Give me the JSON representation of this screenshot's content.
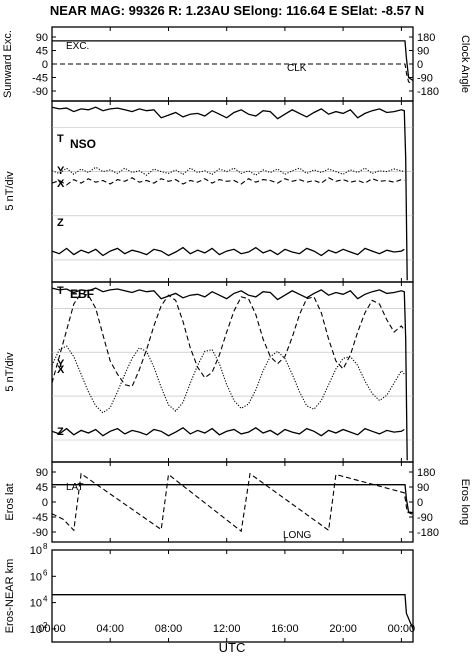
{
  "title": "NEAR MAG: 99326  R: 1.23AU  SElong:  116.64 E  SElat:   -8.57 N",
  "xlabel": "UTC",
  "x_ticks": [
    "00:00",
    "04:00",
    "08:00",
    "12:00",
    "16:00",
    "20:00",
    "00:00"
  ],
  "colors": {
    "line": "#000000",
    "frame": "#000000",
    "guide": "#b8b8b8"
  },
  "chart_data": [
    {
      "type": "line",
      "panel": "sunward",
      "ylabel": "Sunward Exc.",
      "y2label": "Clock Angle",
      "yticks": [
        "90",
        "45",
        "0",
        "-45",
        "-90"
      ],
      "y2ticks": [
        "180",
        "90",
        "0",
        "-90",
        "-180"
      ],
      "ylim": [
        -90,
        90
      ],
      "xlim": [
        0,
        24.8
      ],
      "series": [
        {
          "name": "EXC.",
          "style": "solid",
          "x": [
            0,
            24.25,
            24.35,
            24.5,
            24.8
          ],
          "values": [
            77,
            77,
            20,
            -45,
            -55
          ]
        },
        {
          "name": "CLK",
          "style": "dashed",
          "axis": "right",
          "x": [
            0,
            24.25,
            24.35,
            24.5,
            24.8
          ],
          "values": [
            0,
            0,
            -60,
            -120,
            -130
          ]
        }
      ]
    },
    {
      "type": "line",
      "panel": "nso",
      "label": "NSO",
      "ylabel": "5 nT/div",
      "xlim": [
        0,
        24.8
      ],
      "series": [
        {
          "name": "T",
          "style": "solid",
          "x": [
            0,
            0.5,
            1,
            1.5,
            2,
            2.5,
            3,
            3.5,
            4,
            4.5,
            5,
            5.5,
            6,
            6.5,
            7,
            7.5,
            8,
            8.5,
            9,
            9.5,
            10,
            10.5,
            11,
            11.5,
            12,
            12.5,
            13,
            13.5,
            14,
            14.5,
            15,
            15.5,
            16,
            16.5,
            17,
            17.5,
            18,
            18.5,
            19,
            19.5,
            20,
            20.5,
            21,
            21.5,
            22,
            22.5,
            23,
            23.5,
            24,
            24.2,
            24.3,
            24.4
          ],
          "values": [
            9.8,
            9.6,
            9.7,
            9.3,
            9.6,
            9.5,
            9.8,
            9.4,
            9.6,
            9.7,
            9.5,
            9.3,
            9.6,
            9.4,
            9.5,
            8.6,
            8.9,
            9.2,
            8.7,
            9.0,
            9.1,
            8.8,
            9.4,
            9.0,
            8.6,
            9.2,
            9.5,
            9.0,
            8.8,
            9.4,
            9.3,
            8.5,
            9.0,
            9.5,
            9.1,
            8.7,
            9.2,
            9.6,
            9.0,
            9.3,
            9.1,
            9.5,
            8.6,
            9.1,
            9.4,
            9.6,
            9.2,
            9.3,
            9.5,
            9.4,
            4.0,
            -9.8
          ]
        },
        {
          "name": "Y",
          "style": "dotted",
          "x": [
            0,
            0.5,
            1,
            1.5,
            2,
            2.5,
            3,
            3.5,
            4,
            4.5,
            5,
            5.5,
            6,
            6.5,
            7,
            7.5,
            8,
            8.5,
            9,
            9.5,
            10,
            10.5,
            11,
            11.5,
            12,
            12.5,
            13,
            13.5,
            14,
            14.5,
            15,
            15.5,
            16,
            16.5,
            17,
            17.5,
            18,
            18.5,
            19,
            19.5,
            20,
            20.5,
            21,
            21.5,
            22,
            22.5,
            23,
            23.5,
            24,
            24.2
          ],
          "values": [
            2.6,
            2.3,
            2.9,
            2.2,
            2.8,
            2.4,
            3.0,
            2.5,
            2.7,
            2.3,
            2.9,
            2.4,
            2.6,
            2.1,
            2.8,
            2.5,
            2.3,
            2.7,
            2.2,
            2.9,
            2.4,
            2.6,
            2.2,
            2.8,
            2.5,
            2.9,
            2.3,
            2.6,
            2.1,
            2.7,
            2.4,
            2.8,
            2.2,
            2.6,
            2.9,
            2.3,
            2.7,
            2.4,
            2.8,
            2.5,
            2.2,
            2.7,
            2.4,
            2.9,
            2.3,
            2.6,
            2.5,
            2.8,
            2.6,
            2.5
          ]
        },
        {
          "name": "X",
          "style": "dashed",
          "x": [
            0,
            0.5,
            1,
            1.5,
            2,
            2.5,
            3,
            3.5,
            4,
            4.5,
            5,
            5.5,
            6,
            6.5,
            7,
            7.5,
            8,
            8.5,
            9,
            9.5,
            10,
            10.5,
            11,
            11.5,
            12,
            12.5,
            13,
            13.5,
            14,
            14.5,
            15,
            15.5,
            16,
            16.5,
            17,
            17.5,
            18,
            18.5,
            19,
            19.5,
            20,
            20.5,
            21,
            21.5,
            22,
            22.5,
            23,
            23.5,
            24,
            24.2
          ],
          "values": [
            1.2,
            1.5,
            1.0,
            1.6,
            1.2,
            1.7,
            1.3,
            1.5,
            1.1,
            1.6,
            1.4,
            1.8,
            1.3,
            1.5,
            1.2,
            1.7,
            1.4,
            1.6,
            1.1,
            1.5,
            1.3,
            1.7,
            1.2,
            1.6,
            1.4,
            1.5,
            1.1,
            1.7,
            1.3,
            1.6,
            1.5,
            1.2,
            1.7,
            1.4,
            1.6,
            1.3,
            1.5,
            1.2,
            1.8,
            1.4,
            1.6,
            1.3,
            1.5,
            1.2,
            1.7,
            1.4,
            1.5,
            1.3,
            1.6,
            1.5
          ]
        },
        {
          "name": "Z",
          "style": "solid",
          "x": [
            0,
            0.5,
            1,
            1.5,
            2,
            2.5,
            3,
            3.5,
            4,
            4.5,
            5,
            5.5,
            6,
            6.5,
            7,
            7.5,
            8,
            8.5,
            9,
            9.5,
            10,
            10.5,
            11,
            11.5,
            12,
            12.5,
            13,
            13.5,
            14,
            14.5,
            15,
            15.5,
            16,
            16.5,
            17,
            17.5,
            18,
            18.5,
            19,
            19.5,
            20,
            20.5,
            21,
            21.5,
            22,
            22.5,
            23,
            23.5,
            24,
            24.2
          ],
          "values": [
            -6.5,
            -6.8,
            -6.2,
            -6.9,
            -6.4,
            -6.7,
            -6.3,
            -7.0,
            -6.5,
            -6.2,
            -6.8,
            -6.4,
            -6.6,
            -6.9,
            -6.3,
            -6.5,
            -7.0,
            -6.6,
            -6.1,
            -6.8,
            -6.4,
            -6.7,
            -6.2,
            -6.9,
            -6.5,
            -6.3,
            -6.8,
            -6.6,
            -6.1,
            -6.7,
            -6.4,
            -6.9,
            -6.3,
            -6.6,
            -6.8,
            -6.2,
            -6.5,
            -7.0,
            -6.4,
            -6.7,
            -6.3,
            -6.6,
            -6.9,
            -6.2,
            -6.5,
            -6.8,
            -6.4,
            -6.6,
            -6.5,
            -6.3
          ]
        }
      ]
    },
    {
      "type": "line",
      "panel": "ebf",
      "label": "EBF",
      "ylabel": "5 nT/div",
      "xlim": [
        0,
        24.8
      ],
      "series": [
        {
          "name": "T",
          "style": "solid",
          "x": [
            0,
            0.5,
            1,
            1.5,
            2,
            2.5,
            3,
            3.5,
            4,
            4.5,
            5,
            5.5,
            6,
            6.5,
            7,
            7.5,
            8,
            8.5,
            9,
            9.5,
            10,
            10.5,
            11,
            11.5,
            12,
            12.5,
            13,
            13.5,
            14,
            14.5,
            15,
            15.5,
            16,
            16.5,
            17,
            17.5,
            18,
            18.5,
            19,
            19.5,
            20,
            20.5,
            21,
            21.5,
            22,
            22.5,
            23,
            23.5,
            24,
            24.2,
            24.3,
            24.4
          ],
          "values": [
            9.8,
            9.6,
            9.7,
            9.3,
            9.6,
            9.5,
            9.8,
            9.4,
            9.6,
            9.7,
            9.5,
            9.3,
            9.6,
            9.4,
            9.5,
            8.6,
            8.9,
            9.2,
            8.7,
            9.0,
            9.1,
            8.8,
            9.4,
            9.0,
            8.6,
            9.2,
            9.5,
            9.0,
            8.8,
            9.4,
            9.3,
            8.5,
            9.0,
            9.5,
            9.1,
            8.7,
            9.2,
            9.6,
            9.0,
            9.3,
            9.1,
            9.5,
            8.6,
            9.1,
            9.4,
            9.6,
            9.2,
            9.3,
            9.5,
            9.4,
            4.0,
            -9.8
          ]
        },
        {
          "name": "Y",
          "style": "dashed",
          "x": [
            0,
            0.5,
            1,
            1.5,
            2,
            2.5,
            3,
            3.5,
            4,
            4.5,
            5,
            5.5,
            6,
            6.5,
            7,
            7.5,
            8,
            8.5,
            9,
            9.5,
            10,
            10.5,
            11,
            11.5,
            12,
            12.5,
            13,
            13.5,
            14,
            14.5,
            15,
            15.5,
            16,
            16.5,
            17,
            17.5,
            18,
            18.5,
            19,
            19.5,
            20,
            20.5,
            21,
            21.5,
            22,
            22.5,
            23,
            23.5,
            24,
            24.2
          ],
          "values": [
            -1.0,
            2.0,
            5.0,
            8.0,
            9.2,
            9.0,
            7.5,
            4.5,
            1.5,
            0.0,
            -1.2,
            -1.4,
            0.5,
            2.8,
            5.5,
            7.8,
            9.0,
            8.4,
            6.0,
            3.0,
            0.8,
            -0.4,
            0.2,
            2.2,
            4.8,
            7.2,
            8.8,
            8.6,
            6.8,
            4.0,
            2.0,
            1.2,
            2.0,
            4.2,
            6.8,
            8.6,
            8.8,
            7.0,
            4.0,
            1.5,
            0.6,
            2.2,
            4.8,
            7.0,
            8.4,
            8.0,
            6.2,
            4.8,
            5.5,
            5.0
          ]
        },
        {
          "name": "X",
          "style": "dotted",
          "x": [
            0,
            0.5,
            1,
            1.5,
            2,
            2.5,
            3,
            3.5,
            4,
            4.5,
            5,
            5.5,
            6,
            6.5,
            7,
            7.5,
            8,
            8.5,
            9,
            9.5,
            10,
            10.5,
            11,
            11.5,
            12,
            12.5,
            13,
            13.5,
            14,
            14.5,
            15,
            15.5,
            16,
            16.5,
            17,
            17.5,
            18,
            18.5,
            19,
            19.5,
            20,
            20.5,
            21,
            21.5,
            22,
            22.5,
            23,
            23.5,
            24,
            24.2
          ],
          "values": [
            1.0,
            2.8,
            3.2,
            2.0,
            0.0,
            -2.0,
            -3.6,
            -4.4,
            -3.8,
            -2.0,
            0.0,
            1.8,
            3.0,
            2.6,
            0.8,
            -1.5,
            -3.5,
            -4.2,
            -3.2,
            -1.0,
            1.0,
            2.6,
            2.8,
            1.2,
            -1.2,
            -3.0,
            -3.9,
            -3.4,
            -1.8,
            0.4,
            2.0,
            2.6,
            1.8,
            0.0,
            -2.0,
            -3.6,
            -4.0,
            -3.0,
            -1.2,
            0.6,
            1.8,
            2.0,
            1.0,
            -0.8,
            -2.2,
            -3.0,
            -2.4,
            -1.0,
            0.4,
            0.0
          ]
        },
        {
          "name": "Z",
          "style": "solid",
          "x": [
            0,
            0.5,
            1,
            1.5,
            2,
            2.5,
            3,
            3.5,
            4,
            4.5,
            5,
            5.5,
            6,
            6.5,
            7,
            7.5,
            8,
            8.5,
            9,
            9.5,
            10,
            10.5,
            11,
            11.5,
            12,
            12.5,
            13,
            13.5,
            14,
            14.5,
            15,
            15.5,
            16,
            16.5,
            17,
            17.5,
            18,
            18.5,
            19,
            19.5,
            20,
            20.5,
            21,
            21.5,
            22,
            22.5,
            23,
            23.5,
            24,
            24.2
          ],
          "values": [
            -6.5,
            -6.8,
            -6.2,
            -6.9,
            -6.4,
            -6.7,
            -6.3,
            -7.0,
            -6.5,
            -6.2,
            -6.8,
            -6.4,
            -6.6,
            -6.9,
            -6.3,
            -6.5,
            -7.0,
            -6.6,
            -6.1,
            -6.8,
            -6.4,
            -6.7,
            -6.2,
            -6.9,
            -6.5,
            -6.3,
            -6.8,
            -6.6,
            -6.1,
            -6.7,
            -6.4,
            -6.9,
            -6.3,
            -6.6,
            -6.8,
            -6.2,
            -6.5,
            -7.0,
            -6.4,
            -6.7,
            -6.3,
            -6.6,
            -6.9,
            -6.2,
            -6.5,
            -6.8,
            -6.4,
            -6.6,
            -6.5,
            -6.3
          ]
        }
      ]
    },
    {
      "type": "line",
      "panel": "eros",
      "ylabel": "Eros lat",
      "y2label": "Eros long",
      "yticks": [
        "90",
        "45",
        "0",
        "-45",
        "-90"
      ],
      "y2ticks": [
        "180",
        "90",
        "0",
        "-90",
        "-180"
      ],
      "ylim": [
        -90,
        90
      ],
      "xlim": [
        0,
        24.8
      ],
      "series": [
        {
          "name": "LAT",
          "style": "solid",
          "x": [
            0,
            24.25,
            24.35,
            24.5,
            24.8
          ],
          "values": [
            52,
            52,
            10,
            -30,
            -32
          ]
        },
        {
          "name": "LONG",
          "style": "dashed",
          "axis": "right",
          "x": [
            0,
            0.8,
            1.5,
            2.0,
            7.5,
            8.0,
            13.0,
            13.6,
            19.0,
            19.5,
            24.2,
            24.4,
            24.8
          ],
          "values": [
            -70,
            -105,
            -170,
            170,
            -165,
            165,
            -175,
            170,
            -170,
            165,
            55,
            -60,
            -75
          ]
        }
      ]
    },
    {
      "type": "line",
      "panel": "distance",
      "ylabel": "Eros-NEAR km",
      "ylog": true,
      "yticks": [
        "10",
        "10",
        "10",
        "10"
      ],
      "ytick_exps": [
        "8",
        "6",
        "4",
        "2"
      ],
      "ylim": [
        10,
        100000000
      ],
      "xlim": [
        0,
        24.8
      ],
      "series": [
        {
          "style": "solid",
          "x": [
            0,
            24.25,
            24.35,
            24.8
          ],
          "values": [
            40000,
            40000,
            1500,
            100
          ]
        }
      ]
    }
  ]
}
